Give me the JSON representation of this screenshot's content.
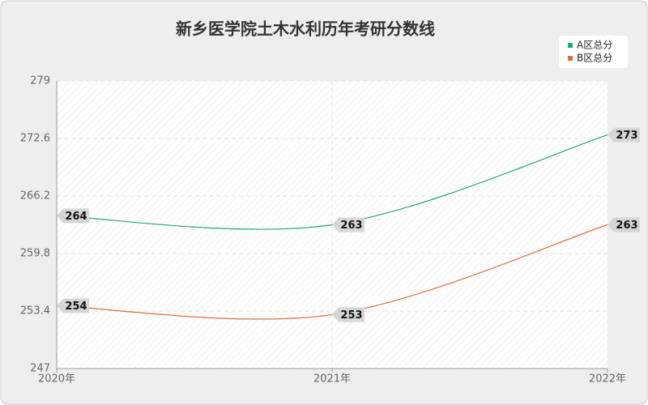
{
  "chart_data": {
    "type": "line",
    "title": "新乡医学院土木水利历年考研分数线",
    "categories": [
      "2020年",
      "2021年",
      "2022年"
    ],
    "series": [
      {
        "name": "A区总分",
        "color": "#22a67a",
        "values": [
          264,
          263,
          273
        ]
      },
      {
        "name": "B区总分",
        "color": "#e06d3c",
        "values": [
          254,
          253,
          263
        ]
      }
    ],
    "ylim": [
      247,
      279
    ],
    "yticks": [
      247,
      253.4,
      259.8,
      266.2,
      272.6,
      279
    ],
    "grid": true
  }
}
